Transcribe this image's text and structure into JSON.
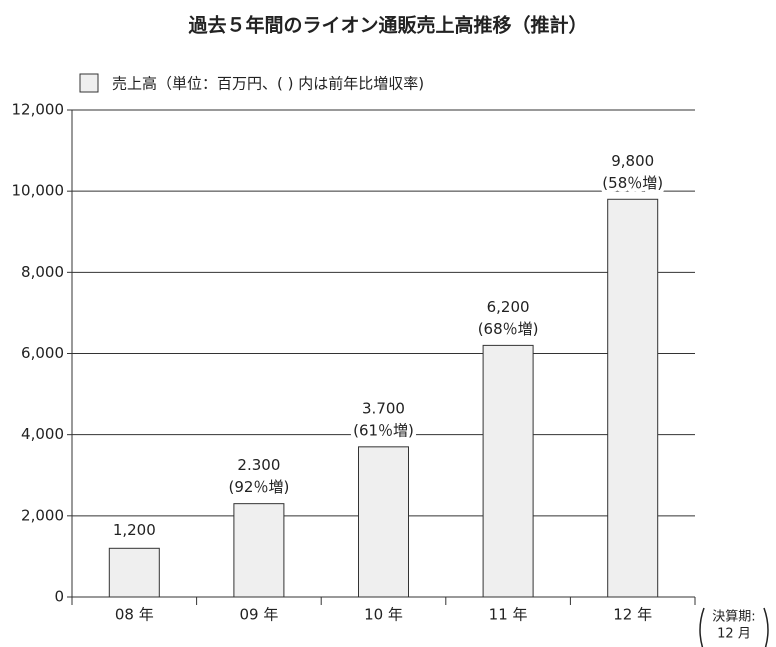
{
  "chart_data": {
    "type": "bar",
    "title": "過去５年間のライオン通販売上高推移（推計）",
    "categories": [
      "08 年",
      "09 年",
      "10 年",
      "11 年",
      "12 年"
    ],
    "series": [
      {
        "name": "売上高（単位：百万円、( ) 内は前年比増収率)",
        "color": "#efefef",
        "values": [
          1200,
          2300,
          3700,
          6200,
          9800
        ],
        "value_labels": [
          "1,200",
          "2.300",
          "3.700",
          "6,200",
          "9,800"
        ]
      }
    ],
    "annotations": [
      null,
      "(92％増)",
      "(61％増)",
      "(68％増)",
      "(58％増)"
    ],
    "note": [
      "決算期:",
      "12 月"
    ],
    "ylim": [
      0,
      12000
    ],
    "yticks": [
      0,
      {
        "value": 2000,
        "label": "2,000"
      },
      {
        "value": 4000,
        "label": "4,000"
      },
      {
        "value": 6000,
        "label": "6,000"
      },
      {
        "value": 8000,
        "label": "8,000"
      },
      {
        "value": 10000,
        "label": "10,000"
      },
      {
        "value": 12000,
        "label": "12,000"
      }
    ],
    "grid": true,
    "legend": "top-left"
  }
}
